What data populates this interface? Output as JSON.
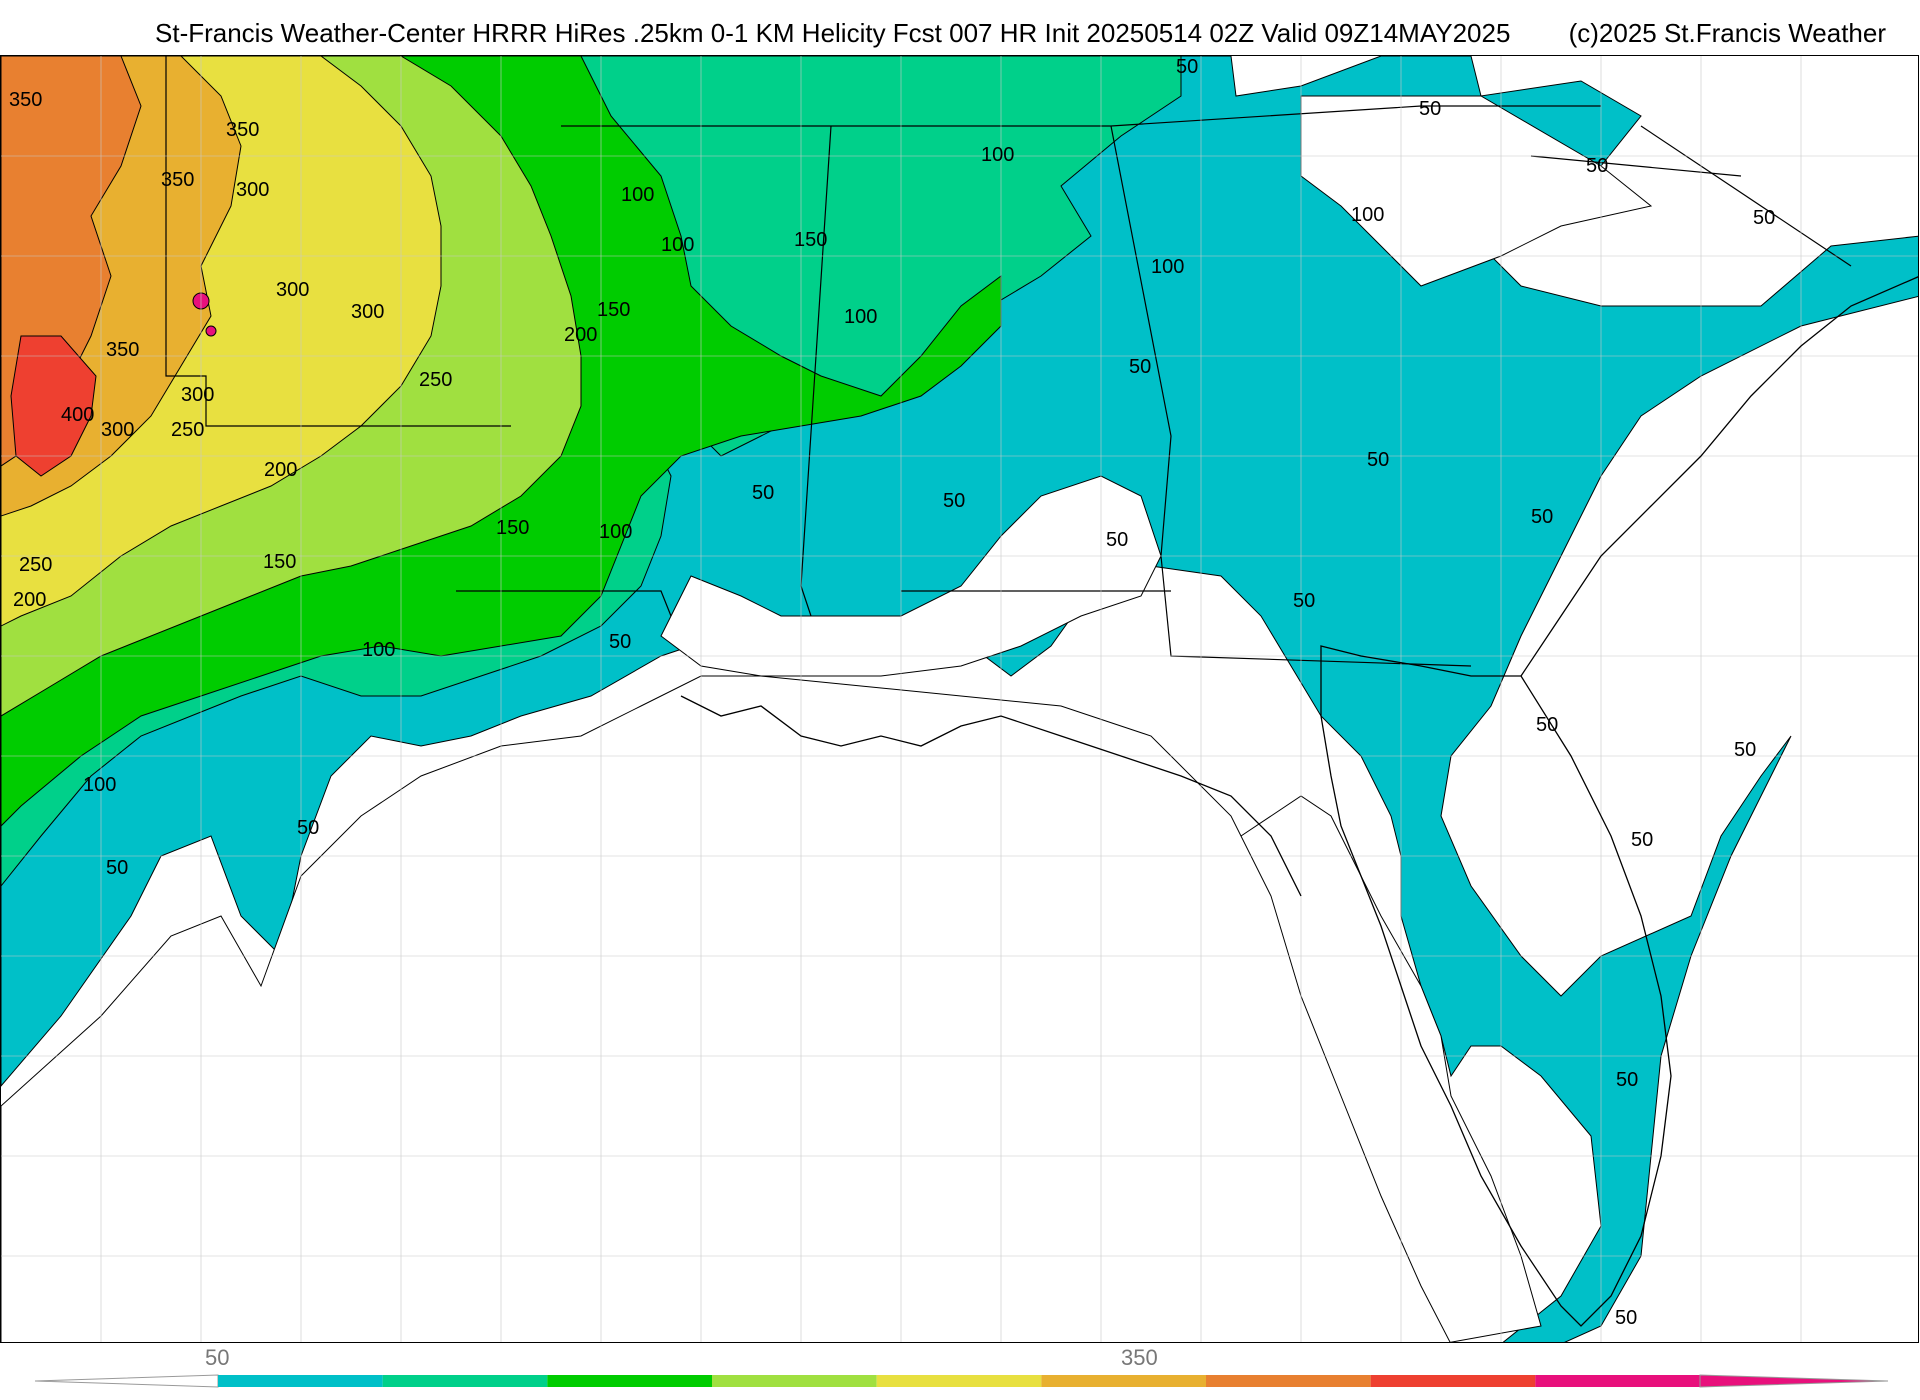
{
  "title": {
    "main": "St-Francis Weather-Center HRRR HiRes .25km 0-1 KM Helicity Fcst 007 HR Init 20250514 02Z  Valid 09Z14MAY2025",
    "copyright": "(c)2025 St.Francis Weather"
  },
  "contour_labels": [
    "350",
    "350",
    "350",
    "300",
    "300",
    "300",
    "350",
    "400",
    "300",
    "300",
    "250",
    "200",
    "250",
    "200",
    "250",
    "150",
    "200",
    "150",
    "150",
    "100",
    "100",
    "150",
    "100",
    "100",
    "100",
    "100",
    "50",
    "50",
    "100",
    "100",
    "50",
    "50",
    "50",
    "50",
    "50",
    "50",
    "50",
    "50",
    "50",
    "50",
    "50",
    "50",
    "100",
    "50"
  ],
  "colorbar": {
    "tick_labels": [
      "50",
      "350"
    ],
    "colors": [
      "#00c0c8",
      "#00d08a",
      "#00cc00",
      "#a0e040",
      "#e8e040",
      "#e8b030",
      "#e88030",
      "#ee4030",
      "#e8107c"
    ]
  }
}
